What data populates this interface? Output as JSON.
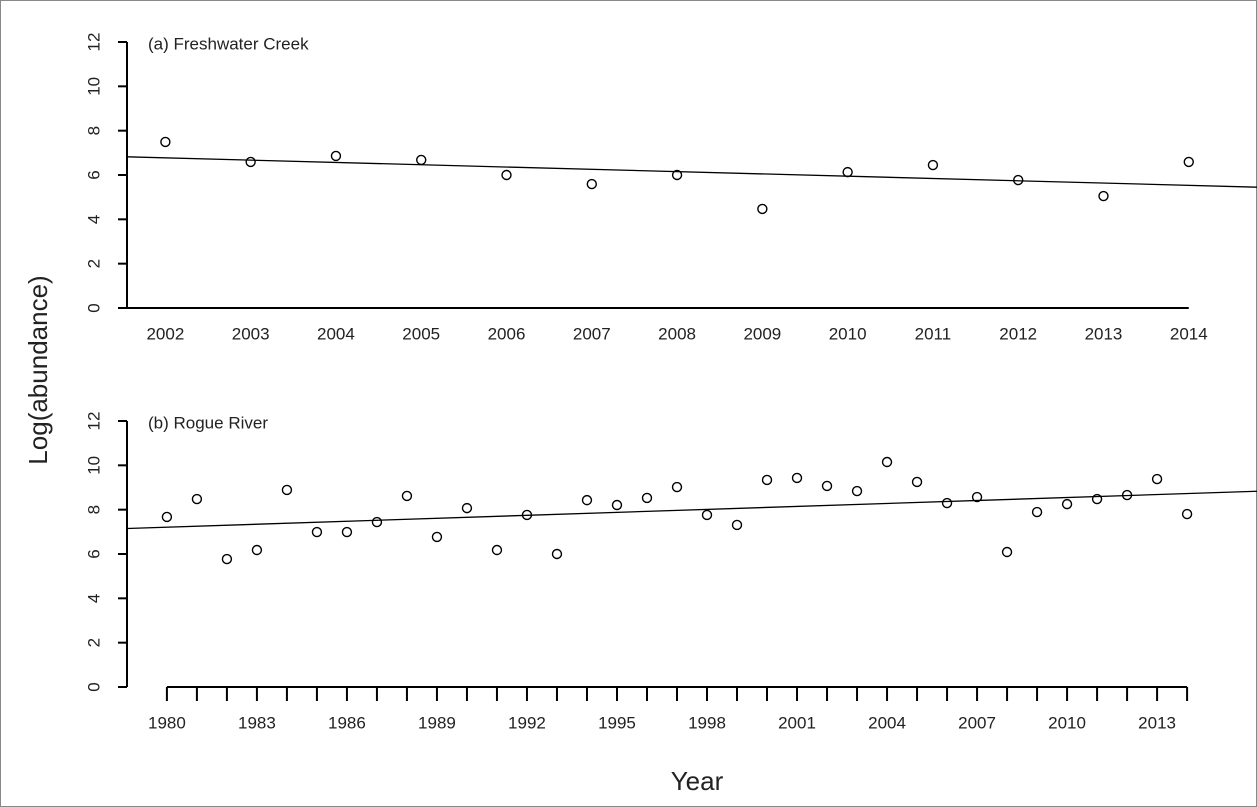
{
  "ylabel": "Log(abundance)",
  "xlabel": "Year",
  "chart_data": [
    {
      "type": "scatter",
      "title": "(a) Freshwater Creek",
      "x": [
        2002,
        2003,
        2004,
        2005,
        2006,
        2007,
        2008,
        2009,
        2010,
        2011,
        2012,
        2013,
        2014
      ],
      "values": [
        7.49,
        6.59,
        6.86,
        6.68,
        6.0,
        5.59,
        6.0,
        4.47,
        6.13,
        6.45,
        5.77,
        5.05,
        6.59
      ],
      "trend": {
        "x": [
          2001.55,
          2014.8
        ],
        "values": [
          6.82,
          5.45
        ]
      },
      "color": "#000000",
      "xlim": [
        2001.55,
        2014.8
      ],
      "ylim": [
        0,
        12
      ],
      "xticks": [
        2002,
        2003,
        2004,
        2005,
        2006,
        2007,
        2008,
        2009,
        2010,
        2011,
        2012,
        2013,
        2014
      ],
      "yticks": [
        0,
        2,
        4,
        6,
        8,
        10,
        12
      ]
    },
    {
      "type": "scatter",
      "title": "(b) Rogue River",
      "x": [
        1980,
        1981,
        1982,
        1983,
        1984,
        1985,
        1986,
        1987,
        1988,
        1989,
        1990,
        1991,
        1992,
        1993,
        1994,
        1995,
        1996,
        1997,
        1998,
        1999,
        2000,
        2001,
        2002,
        2003,
        2004,
        2005,
        2006,
        2007,
        2008,
        2009,
        2010,
        2011,
        2012,
        2013,
        2014
      ],
      "values": [
        7.67,
        8.48,
        5.77,
        6.18,
        8.89,
        6.99,
        6.99,
        7.44,
        8.62,
        6.77,
        8.07,
        6.18,
        7.76,
        6.0,
        8.43,
        8.21,
        8.53,
        9.02,
        7.76,
        7.31,
        9.34,
        9.43,
        9.07,
        8.84,
        10.15,
        9.25,
        8.3,
        8.57,
        6.09,
        7.89,
        8.25,
        8.48,
        8.66,
        9.38,
        7.8
      ],
      "trend": {
        "x": [
          1978.67,
          2016.33
        ],
        "values": [
          7.15,
          8.83
        ]
      },
      "color": "#000000",
      "xlim": [
        1978.67,
        2016.33
      ],
      "ylim": [
        0,
        12
      ],
      "xticks": [
        1980,
        1983,
        1986,
        1989,
        1992,
        1995,
        1998,
        2001,
        2004,
        2007,
        2010,
        2013
      ],
      "xminorticks": [
        1980,
        1981,
        1982,
        1983,
        1984,
        1985,
        1986,
        1987,
        1988,
        1989,
        1990,
        1991,
        1992,
        1993,
        1994,
        1995,
        1996,
        1997,
        1998,
        1999,
        2000,
        2001,
        2002,
        2003,
        2004,
        2005,
        2006,
        2007,
        2008,
        2009,
        2010,
        2011,
        2012,
        2013,
        2014
      ],
      "yticks": [
        0,
        2,
        4,
        6,
        8,
        10,
        12
      ]
    }
  ]
}
